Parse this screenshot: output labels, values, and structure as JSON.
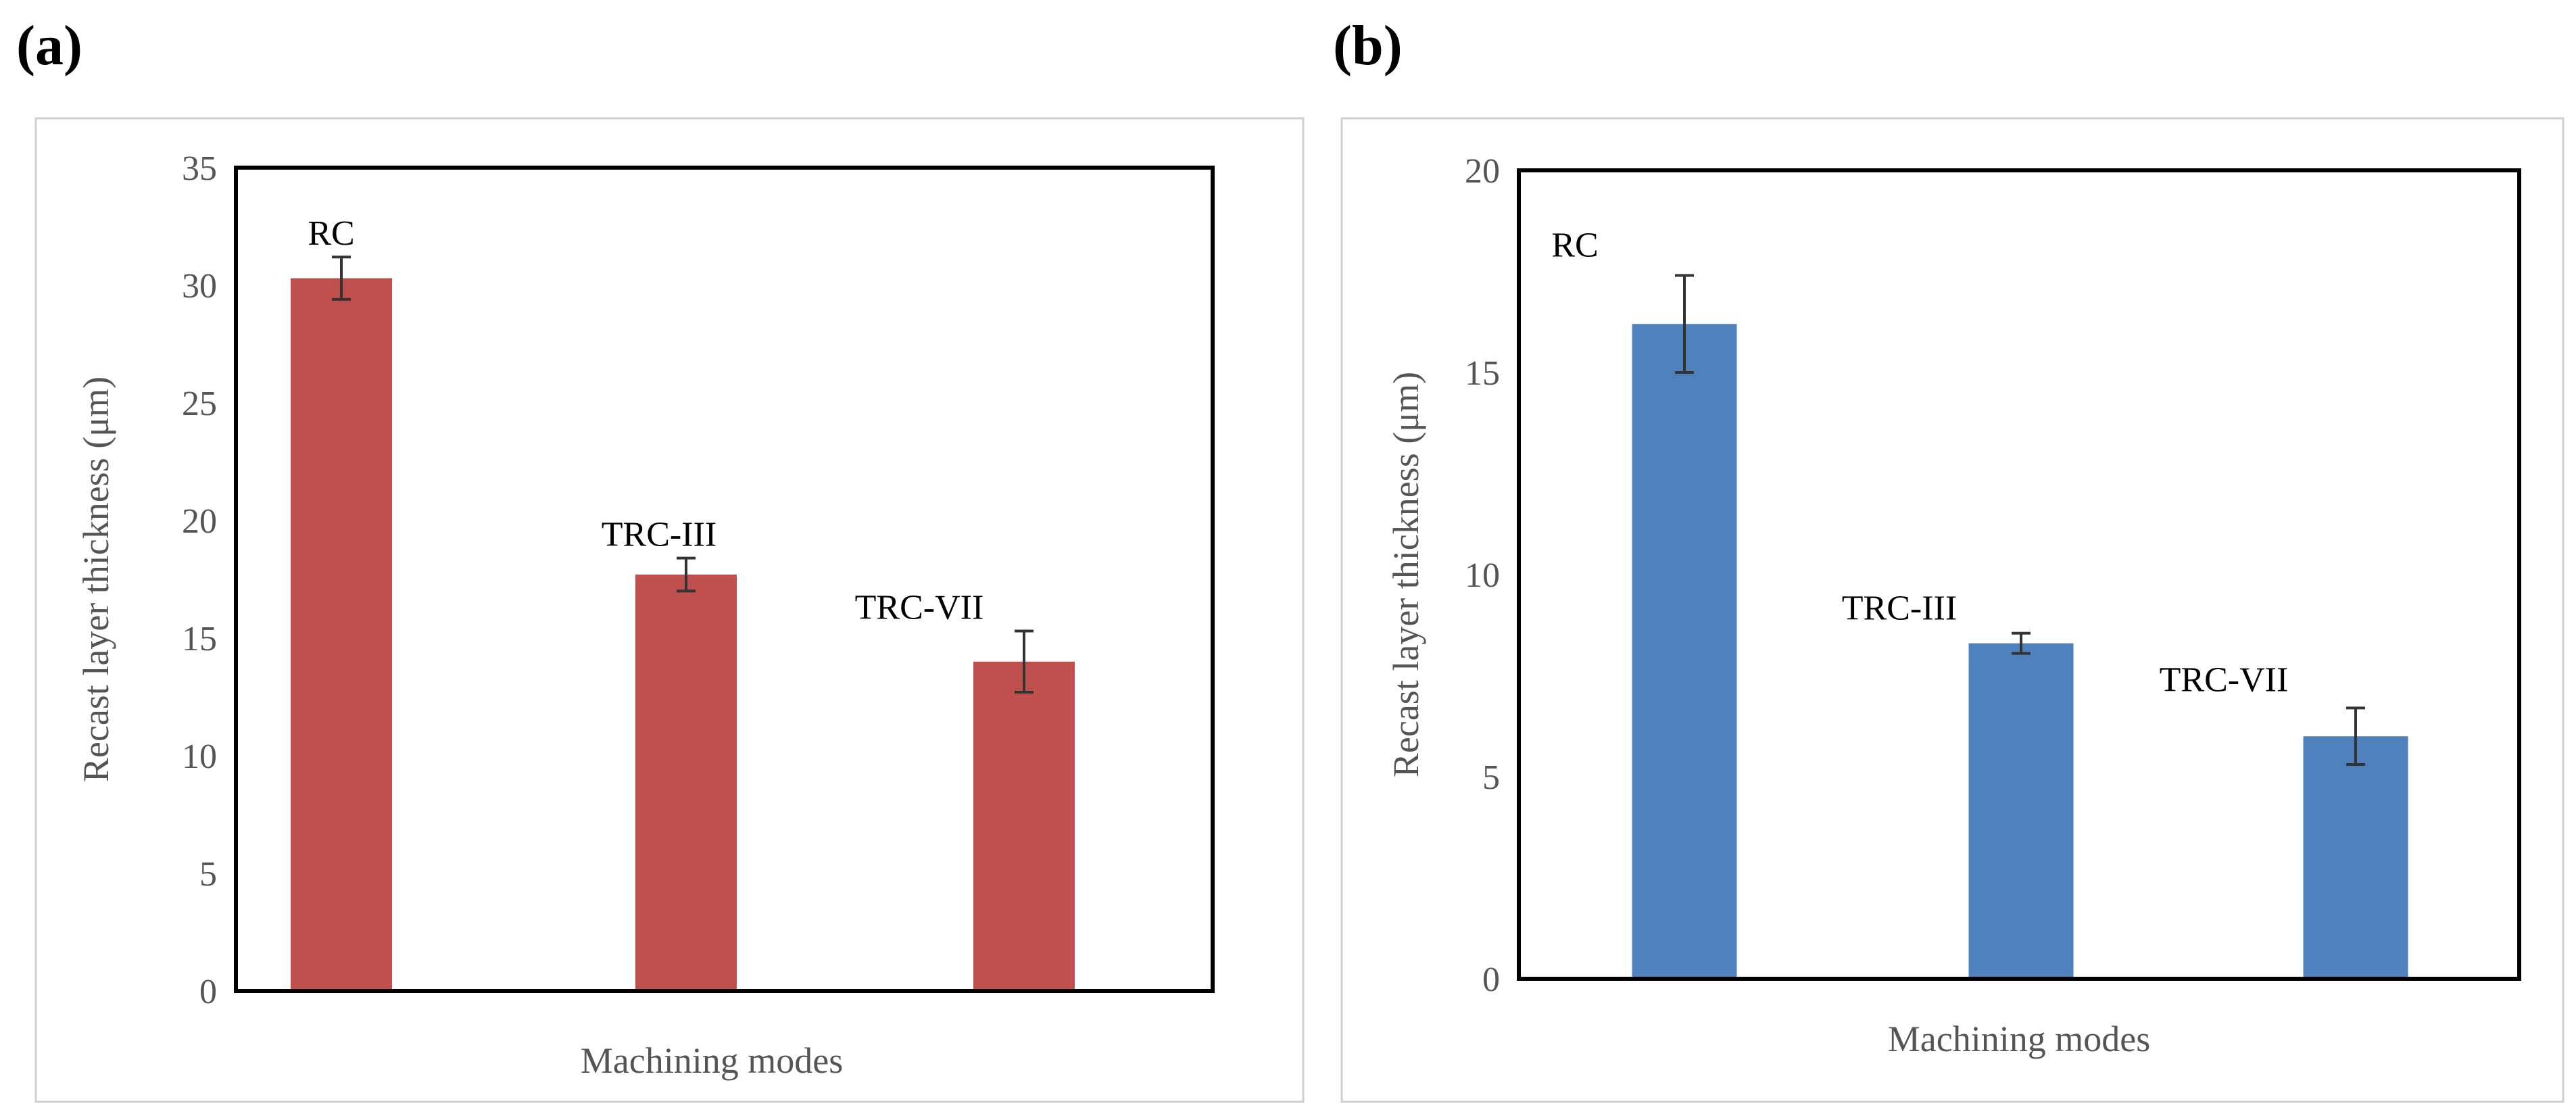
{
  "figure": {
    "panels": [
      "(a)",
      "(b)"
    ]
  },
  "chart_data": [
    {
      "panel_label": "(a)",
      "type": "bar",
      "title": "",
      "categories": [
        "RC",
        "TRC-III",
        "TRC-VII"
      ],
      "values": [
        30.3,
        17.7,
        14.0
      ],
      "error": [
        0.9,
        0.7,
        1.3
      ],
      "bar_labels": [
        "RC",
        "TRC-III",
        "TRC-VII"
      ],
      "xlabel": "Machining modes",
      "ylabel": "Recast layer thickness (μm)",
      "ylim": [
        0,
        35
      ],
      "yticks": [
        0,
        5,
        10,
        15,
        20,
        25,
        30,
        35
      ],
      "color": "#c0504d",
      "grid": false,
      "legend": "none"
    },
    {
      "panel_label": "(b)",
      "type": "bar",
      "title": "",
      "categories": [
        "RC",
        "TRC-III",
        "TRC-VII"
      ],
      "values": [
        16.2,
        8.3,
        6.0
      ],
      "error": [
        1.2,
        0.25,
        0.7
      ],
      "bar_labels": [
        "RC",
        "TRC-III",
        "TRC-VII"
      ],
      "xlabel": "Machining modes",
      "ylabel": "Recast layer thickness (μm)",
      "ylim": [
        0,
        20
      ],
      "yticks": [
        0,
        5,
        10,
        15,
        20
      ],
      "color": "#4f81bd",
      "grid": false,
      "legend": "none"
    }
  ]
}
